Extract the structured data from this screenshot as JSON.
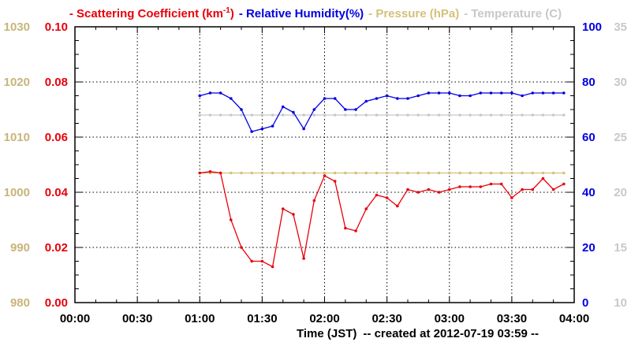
{
  "chart_data": {
    "type": "line",
    "xlabel": "Time (JST)",
    "footer_note": "-- created at 2012-07-19 03:59 --",
    "x_ticks": [
      "00:00",
      "00:30",
      "01:00",
      "01:30",
      "02:00",
      "02:30",
      "03:00",
      "03:30",
      "04:00"
    ],
    "xlim_minutes": [
      0,
      240
    ],
    "grid": true,
    "legend": {
      "placement": "top",
      "entries": [
        {
          "prefix": "-",
          "text": "Scattering Coefficient (km",
          "sup": "-1",
          "suffix": ")",
          "color": "#e8000b"
        },
        {
          "prefix": "-",
          "text": "Relative Humidity(%)",
          "color": "#0000e0"
        },
        {
          "prefix": "-",
          "text": "Pressure (hPa)",
          "color": "#d4c17a"
        },
        {
          "prefix": "-",
          "text": "Temperature (C)",
          "color": "#c8c8c8"
        }
      ]
    },
    "axes": {
      "scattering": {
        "ylim": [
          0,
          0.1
        ],
        "ticks": [
          "0.00",
          "0.02",
          "0.04",
          "0.06",
          "0.08",
          "0.10"
        ],
        "color": "#e8000b",
        "side": "left-inner"
      },
      "pressure": {
        "ylim": [
          980,
          1030
        ],
        "ticks": [
          "980",
          "990",
          "1000",
          "1010",
          "1020",
          "1030"
        ],
        "color": "#c8b47a",
        "side": "left-outer"
      },
      "humidity": {
        "ylim": [
          0,
          100
        ],
        "ticks": [
          "0",
          "20",
          "40",
          "60",
          "80",
          "100"
        ],
        "color": "#0000e0",
        "side": "right-inner"
      },
      "temperature": {
        "ylim": [
          10,
          35
        ],
        "ticks": [
          "10",
          "15",
          "20",
          "25",
          "30",
          "35"
        ],
        "color": "#c8c8c8",
        "side": "right-outer"
      }
    },
    "series": [
      {
        "name": "Scattering Coefficient",
        "axis": "scattering",
        "color": "#e8000b",
        "x_minutes": [
          60,
          65,
          70,
          75,
          80,
          85,
          90,
          95,
          100,
          105,
          110,
          115,
          120,
          125,
          130,
          135,
          140,
          145,
          150,
          155,
          160,
          165,
          170,
          175,
          180,
          185,
          190,
          195,
          200,
          205,
          210,
          215,
          220,
          225,
          230,
          235
        ],
        "y": [
          0.047,
          0.0475,
          0.047,
          0.03,
          0.02,
          0.015,
          0.015,
          0.013,
          0.034,
          0.032,
          0.016,
          0.037,
          0.046,
          0.044,
          0.027,
          0.026,
          0.034,
          0.039,
          0.038,
          0.035,
          0.041,
          0.04,
          0.041,
          0.04,
          0.041,
          0.042,
          0.042,
          0.042,
          0.043,
          0.043,
          0.038,
          0.041,
          0.041,
          0.045,
          0.041,
          0.043
        ]
      },
      {
        "name": "Relative Humidity",
        "axis": "humidity",
        "color": "#0000e0",
        "x_minutes": [
          60,
          65,
          70,
          75,
          80,
          85,
          90,
          95,
          100,
          105,
          110,
          115,
          120,
          125,
          130,
          135,
          140,
          145,
          150,
          155,
          160,
          165,
          170,
          175,
          180,
          185,
          190,
          195,
          200,
          205,
          210,
          215,
          220,
          225,
          230,
          235
        ],
        "y": [
          75,
          76,
          76,
          74,
          70,
          62,
          63,
          64,
          71,
          69,
          63,
          70,
          74,
          74,
          70,
          70,
          73,
          74,
          75,
          74,
          74,
          75,
          76,
          76,
          76,
          75,
          75,
          76,
          76,
          76,
          76,
          75,
          76,
          76,
          76,
          76
        ]
      },
      {
        "name": "Pressure",
        "axis": "pressure",
        "color": "#d4c17a",
        "x_minutes": [
          60,
          65,
          70,
          75,
          80,
          85,
          90,
          95,
          100,
          105,
          110,
          115,
          120,
          125,
          130,
          135,
          140,
          145,
          150,
          155,
          160,
          165,
          170,
          175,
          180,
          185,
          190,
          195,
          200,
          205,
          210,
          215,
          220,
          225,
          230,
          235
        ],
        "y": [
          1003.5,
          1003.5,
          1003.5,
          1003.5,
          1003.5,
          1003.5,
          1003.5,
          1003.5,
          1003.5,
          1003.5,
          1003.5,
          1003.5,
          1003.5,
          1003.5,
          1003.5,
          1003.5,
          1003.5,
          1003.5,
          1003.5,
          1003.5,
          1003.5,
          1003.5,
          1003.5,
          1003.5,
          1003.5,
          1003.5,
          1003.5,
          1003.5,
          1003.5,
          1003.5,
          1003.5,
          1003.5,
          1003.5,
          1003.5,
          1003.5,
          1003.5
        ]
      },
      {
        "name": "Temperature",
        "axis": "temperature",
        "color": "#c8c8c8",
        "x_minutes": [
          60,
          65,
          70,
          75,
          80,
          85,
          90,
          95,
          100,
          105,
          110,
          115,
          120,
          125,
          130,
          135,
          140,
          145,
          150,
          155,
          160,
          165,
          170,
          175,
          180,
          185,
          190,
          195,
          200,
          205,
          210,
          215,
          220,
          225,
          230,
          235
        ],
        "y": [
          27,
          27,
          27,
          27,
          27,
          27,
          27,
          27,
          27,
          27,
          27,
          27,
          27,
          27,
          27,
          27,
          27,
          27,
          27,
          27,
          27,
          27,
          27,
          27,
          27,
          27,
          27,
          27,
          27,
          27,
          27,
          27,
          27,
          27,
          27,
          27
        ]
      }
    ]
  }
}
